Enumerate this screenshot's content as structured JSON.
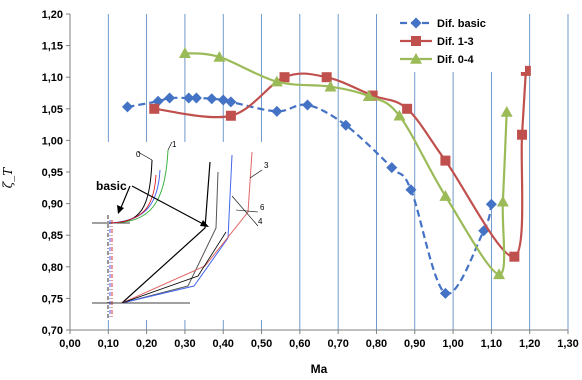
{
  "chart_data": {
    "type": "line",
    "xlabel": "Ma",
    "ylabel": "ζ_T",
    "xlim": [
      0.0,
      1.3
    ],
    "ylim": [
      0.7,
      1.2
    ],
    "x_ticks": [
      "0,00",
      "0,10",
      "0,20",
      "0,30",
      "0,40",
      "0,50",
      "0,60",
      "0,70",
      "0,80",
      "0,90",
      "1,00",
      "1,10",
      "1,20",
      "1,30"
    ],
    "y_ticks": [
      "0,70",
      "0,75",
      "0,80",
      "0,85",
      "0,90",
      "0,95",
      "1,00",
      "1,05",
      "1,10",
      "1,15",
      "1,20"
    ],
    "grid": "vertical",
    "legend_position": "top-right",
    "series": [
      {
        "name": "Dif. basic",
        "color": "#4472c4",
        "line_style": "dashed",
        "marker": "diamond",
        "x": [
          0.15,
          0.23,
          0.26,
          0.31,
          0.33,
          0.37,
          0.4,
          0.42,
          0.54,
          0.62,
          0.72,
          0.84,
          0.89,
          0.98,
          1.08,
          1.1
        ],
        "y": [
          1.053,
          1.062,
          1.067,
          1.067,
          1.067,
          1.066,
          1.064,
          1.061,
          1.046,
          1.056,
          1.024,
          0.957,
          0.922,
          0.758,
          0.857,
          0.899
        ]
      },
      {
        "name": "Dif. 1-3",
        "color": "#c0504d",
        "line_style": "solid",
        "marker": "square",
        "x": [
          0.22,
          0.42,
          0.56,
          0.67,
          0.79,
          0.88,
          0.98,
          1.16,
          1.18,
          1.19
        ],
        "y": [
          1.05,
          1.039,
          1.1,
          1.1,
          1.071,
          1.05,
          0.968,
          0.816,
          1.009,
          1.11
        ]
      },
      {
        "name": "Dif. 0-4",
        "color": "#9bbb59",
        "line_style": "solid",
        "marker": "triangle",
        "x": [
          0.3,
          0.39,
          0.54,
          0.68,
          0.78,
          0.86,
          0.98,
          1.12,
          1.13,
          1.14
        ],
        "y": [
          1.138,
          1.132,
          1.093,
          1.085,
          1.07,
          1.039,
          0.912,
          0.788,
          0.903,
          1.045
        ]
      }
    ],
    "annotations": {
      "inset_labels": [
        "0",
        "1",
        "3",
        "6",
        "4",
        "basic"
      ]
    }
  }
}
